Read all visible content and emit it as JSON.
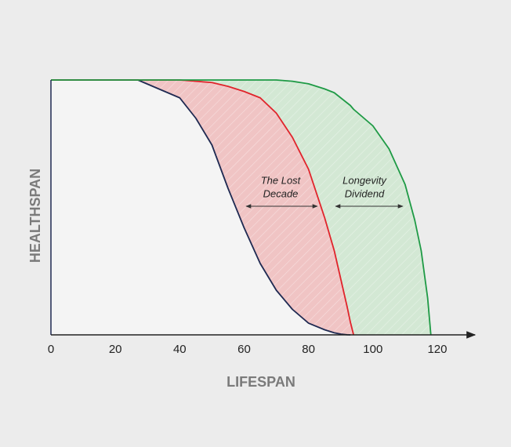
{
  "chart_data": {
    "type": "line",
    "x_label": "LIFESPAN",
    "y_label": "HEALTHSPAN",
    "xlim": [
      0,
      131
    ],
    "xticks": [
      0,
      20,
      40,
      60,
      80,
      100,
      120
    ],
    "ylim": [
      0,
      100
    ],
    "x": [
      0,
      27,
      40,
      45,
      50,
      55,
      60,
      65,
      70,
      75,
      80,
      85,
      88,
      90,
      92,
      93,
      94,
      100,
      105,
      110,
      113,
      115,
      117,
      118
    ],
    "series": [
      {
        "color": "#1f2a52",
        "fill": "#f4f4f4",
        "values": [
          100,
          100,
          93,
          85,
          74.5,
          57.5,
          42,
          28,
          17.5,
          10,
          4.6,
          2,
          0.8,
          0.3,
          0.05,
          0,
          null,
          null,
          null,
          null,
          null,
          null,
          null,
          null
        ]
      },
      {
        "color": "#e0242b",
        "fill": "#f0c4c4",
        "values": [
          100,
          100,
          100,
          99.5,
          99,
          97.5,
          95.5,
          93,
          87,
          77.5,
          65,
          46,
          33,
          22,
          11,
          5,
          0,
          null,
          null,
          null,
          null,
          null,
          null,
          null
        ]
      },
      {
        "color": "#1e9a45",
        "fill": "#d3e8d4",
        "values": [
          100,
          100,
          100,
          100,
          100,
          100,
          100,
          100,
          100,
          99.5,
          98.5,
          96.5,
          95,
          93,
          91,
          90,
          88.5,
          82,
          73,
          59,
          45,
          33,
          14.5,
          0
        ]
      }
    ],
    "annotations": [
      {
        "lines": [
          "The Lost",
          "Decade"
        ]
      },
      {
        "lines": [
          "Longevity",
          "Dividend"
        ]
      }
    ]
  }
}
